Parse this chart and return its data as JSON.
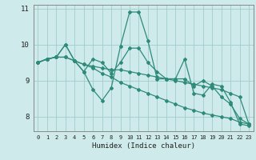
{
  "xlabel": "Humidex (Indice chaleur)",
  "xlim": [
    -0.5,
    23.5
  ],
  "ylim": [
    7.6,
    11.1
  ],
  "yticks": [
    8,
    9,
    10,
    11
  ],
  "xticks": [
    0,
    1,
    2,
    3,
    4,
    5,
    6,
    7,
    8,
    9,
    10,
    11,
    12,
    13,
    14,
    15,
    16,
    17,
    18,
    19,
    20,
    21,
    22,
    23
  ],
  "background_color": "#ceeaea",
  "grid_color": "#a0cccc",
  "line_color": "#2e8b7a",
  "lines": [
    [
      9.5,
      9.6,
      9.65,
      10.0,
      9.55,
      9.25,
      8.75,
      8.45,
      8.8,
      9.95,
      10.9,
      10.9,
      10.1,
      9.05,
      9.05,
      9.05,
      9.6,
      8.65,
      8.6,
      8.9,
      8.85,
      8.4,
      7.8,
      7.75
    ],
    [
      9.5,
      9.6,
      9.65,
      9.65,
      9.55,
      9.45,
      9.4,
      9.35,
      9.3,
      9.3,
      9.25,
      9.2,
      9.15,
      9.1,
      9.05,
      9.0,
      8.95,
      8.9,
      8.85,
      8.8,
      8.75,
      8.65,
      8.55,
      7.8
    ],
    [
      9.5,
      9.6,
      9.65,
      9.65,
      9.55,
      9.45,
      9.35,
      9.2,
      9.1,
      8.95,
      8.85,
      8.75,
      8.65,
      8.55,
      8.45,
      8.35,
      8.25,
      8.18,
      8.1,
      8.05,
      8.0,
      7.95,
      7.85,
      7.8
    ],
    [
      9.5,
      9.6,
      9.65,
      10.0,
      9.55,
      9.25,
      9.6,
      9.5,
      9.2,
      9.5,
      9.9,
      9.9,
      9.5,
      9.25,
      9.05,
      9.05,
      9.05,
      8.85,
      9.0,
      8.85,
      8.55,
      8.35,
      7.95,
      7.8
    ]
  ]
}
